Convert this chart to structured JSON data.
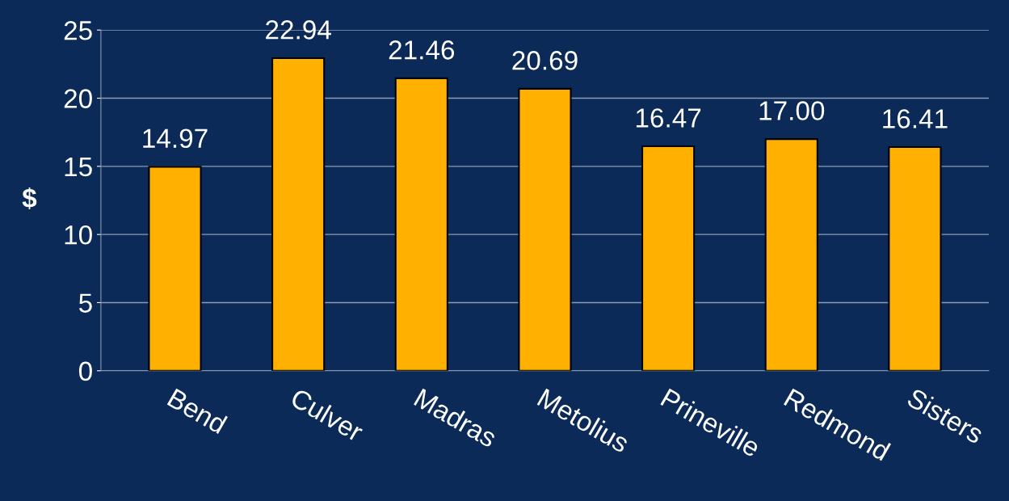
{
  "chart_data": {
    "type": "bar",
    "ylabel": "$",
    "categories": [
      "Bend",
      "Culver",
      "Madras",
      "Metolius",
      "Prineville",
      "Redmond",
      "Sisters"
    ],
    "values": [
      14.97,
      22.94,
      21.46,
      20.69,
      16.47,
      17.0,
      16.41
    ],
    "value_labels": [
      "14.97",
      "22.94",
      "21.46",
      "20.69",
      "16.47",
      "17.00",
      "16.41"
    ],
    "color": "#ffb000",
    "ylim": [
      0,
      25
    ],
    "yticks": [
      0,
      5,
      10,
      15,
      20,
      25
    ],
    "grid": "y"
  }
}
